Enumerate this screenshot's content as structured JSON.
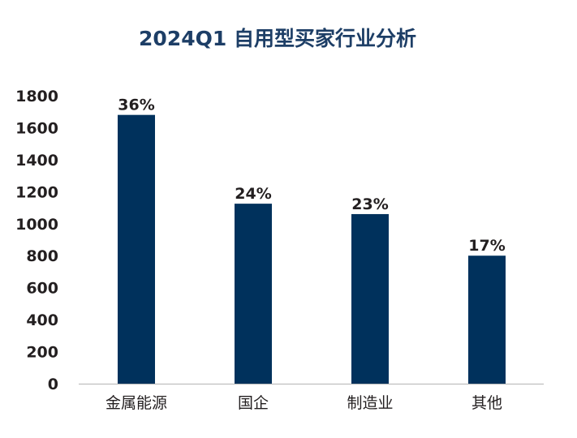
{
  "chart_data": {
    "type": "bar",
    "title": "2024Q1 自用型买家行业分析",
    "categories": [
      "金属能源",
      "国企",
      "制造业",
      "其他"
    ],
    "values": [
      1680,
      1125,
      1060,
      800
    ],
    "data_labels": [
      "36%",
      "24%",
      "23%",
      "17%"
    ],
    "ylim": [
      0,
      1800
    ],
    "yticks": [
      0,
      200,
      400,
      600,
      800,
      1000,
      1200,
      1400,
      1600,
      1800
    ],
    "xlabel": "",
    "ylabel": "",
    "grid": false,
    "legend": "none",
    "colors": {
      "bar": "#00315c",
      "title": "#1d3e66",
      "text": "#231f20",
      "axis": "#b3b3b3"
    }
  }
}
